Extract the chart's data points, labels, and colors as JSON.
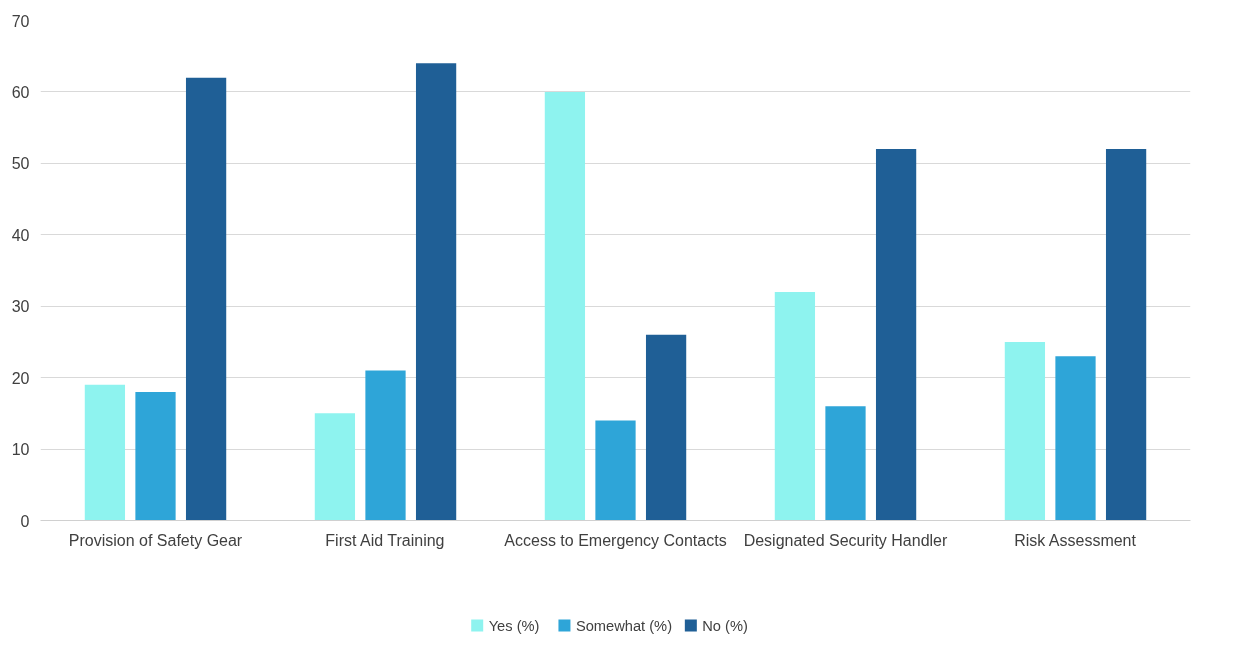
{
  "chart_data": {
    "type": "bar",
    "categories": [
      "Provision of Safety Gear",
      "First Aid Training",
      "Access to Emergency Contacts",
      "Designated Security Handler",
      "Risk Assessment"
    ],
    "series": [
      {
        "name": "Yes (%)",
        "color": "#8ef3ef",
        "values": [
          19,
          15,
          60,
          32,
          25
        ]
      },
      {
        "name": "Somewhat (%)",
        "color": "#2ea5d8",
        "values": [
          18,
          21,
          14,
          16,
          23
        ]
      },
      {
        "name": "No (%)",
        "color": "#1f5f96",
        "values": [
          62,
          64,
          26,
          52,
          52
        ]
      }
    ],
    "ylim": [
      0,
      70
    ],
    "yticks": [
      0,
      10,
      20,
      30,
      40,
      50,
      60,
      70
    ],
    "grid": "y",
    "legend": "bottom"
  }
}
